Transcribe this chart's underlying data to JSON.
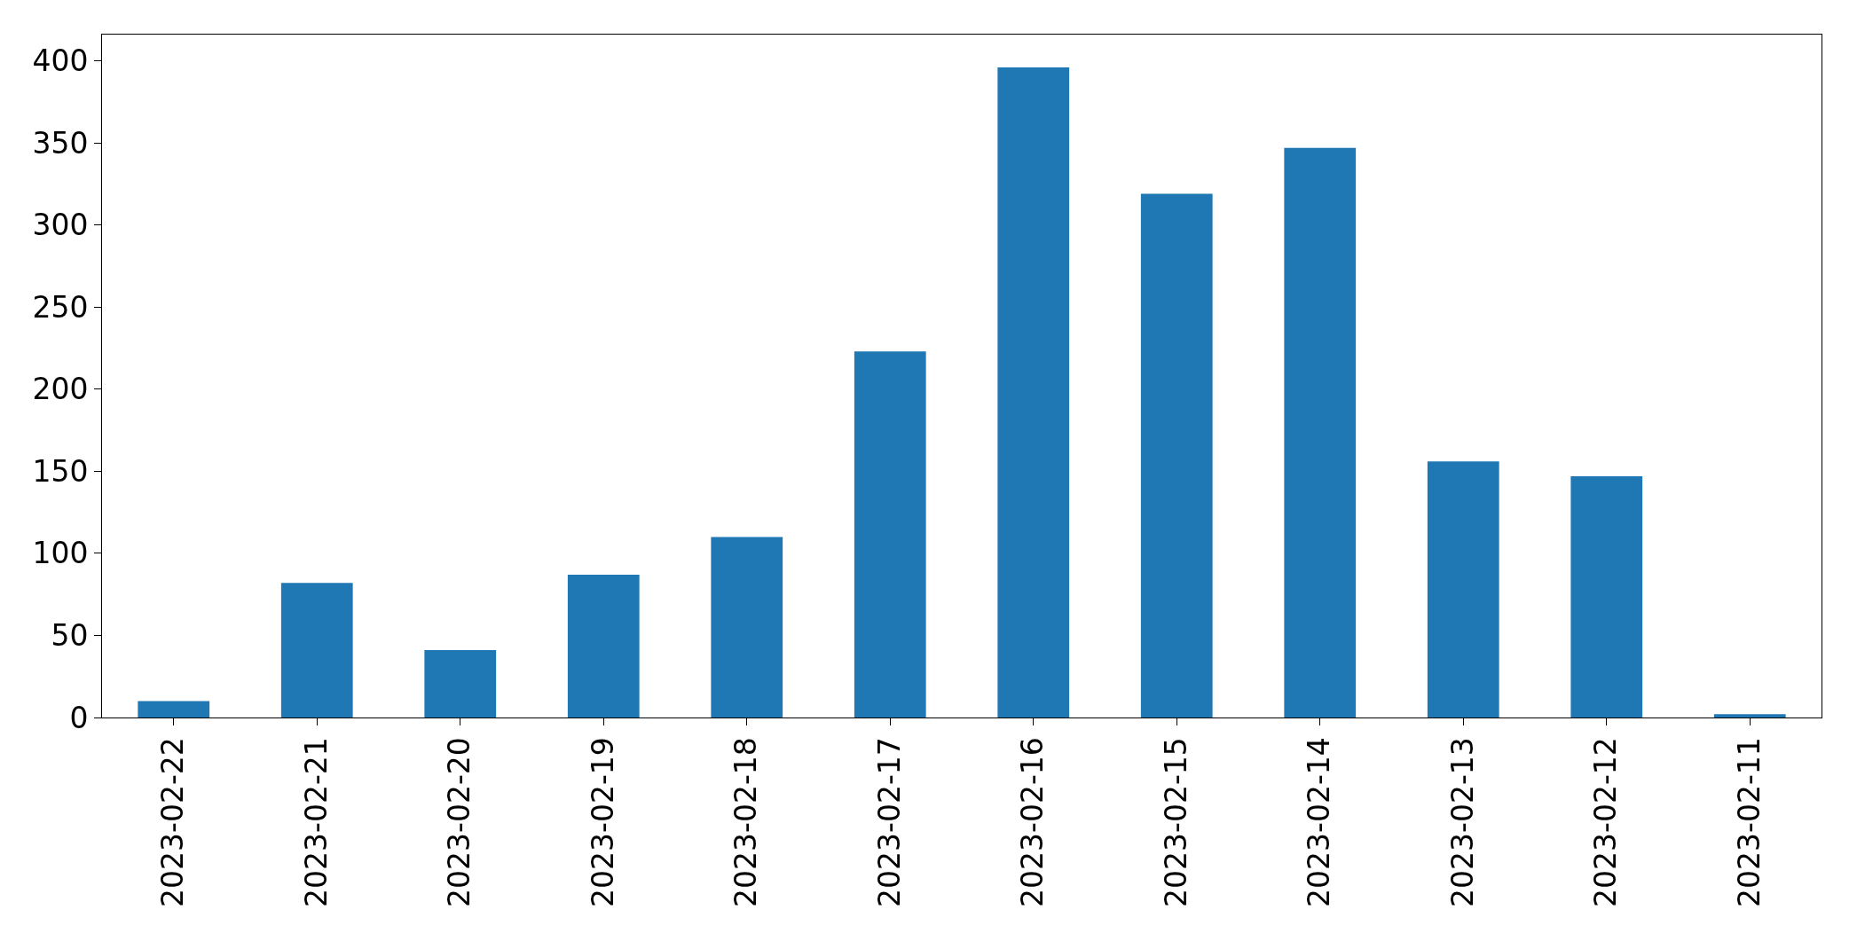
{
  "chart_data": {
    "type": "bar",
    "categories": [
      "2023-02-22",
      "2023-02-21",
      "2023-02-20",
      "2023-02-19",
      "2023-02-18",
      "2023-02-17",
      "2023-02-16",
      "2023-02-15",
      "2023-02-14",
      "2023-02-13",
      "2023-02-12",
      "2023-02-11"
    ],
    "values": [
      10,
      82,
      41,
      87,
      110,
      223,
      396,
      319,
      347,
      156,
      147,
      2
    ],
    "color": "#1f77b4",
    "ylim": [
      0,
      416
    ],
    "yticks": [
      0,
      50,
      100,
      150,
      200,
      250,
      300,
      350,
      400
    ]
  }
}
